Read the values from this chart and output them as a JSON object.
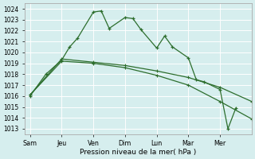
{
  "xlabel": "Pression niveau de la mer( hPa )",
  "bg_color": "#d6eeee",
  "grid_color": "#c8e0e0",
  "line_color": "#2d6e2d",
  "ylim_min": 1012.5,
  "ylim_max": 1024.5,
  "yticks": [
    1013,
    1014,
    1015,
    1016,
    1017,
    1018,
    1019,
    1020,
    1021,
    1022,
    1023,
    1024
  ],
  "x_labels": [
    "Sam",
    "Jeu",
    "Ven",
    "Dim",
    "Lun",
    "Mar",
    "Mer"
  ],
  "x_ticks": [
    0,
    12,
    24,
    36,
    48,
    60,
    72
  ],
  "xlim_min": -2,
  "xlim_max": 84,
  "series1_x": [
    0,
    6,
    12,
    15,
    18,
    24,
    27,
    30,
    36,
    39,
    42,
    48,
    51,
    54,
    60,
    63,
    66,
    72,
    75,
    78
  ],
  "series1_y": [
    1016.0,
    1018.0,
    1019.3,
    1020.5,
    1021.3,
    1023.7,
    1023.8,
    1022.2,
    1023.2,
    1023.1,
    1022.1,
    1020.4,
    1021.5,
    1020.5,
    1019.5,
    1017.5,
    1017.3,
    1016.6,
    1013.0,
    1014.9
  ],
  "series2_x": [
    0,
    12,
    24,
    36,
    48,
    60,
    72,
    84
  ],
  "series2_y": [
    1016.1,
    1019.4,
    1019.1,
    1018.8,
    1018.3,
    1017.7,
    1016.8,
    1015.5
  ],
  "series3_x": [
    0,
    12,
    24,
    36,
    48,
    60,
    72,
    84
  ],
  "series3_y": [
    1016.1,
    1019.2,
    1019.0,
    1018.6,
    1017.9,
    1017.0,
    1015.5,
    1013.9
  ],
  "xlabel_fontsize": 6.5,
  "ytick_fontsize": 5.5,
  "xtick_fontsize": 5.8
}
